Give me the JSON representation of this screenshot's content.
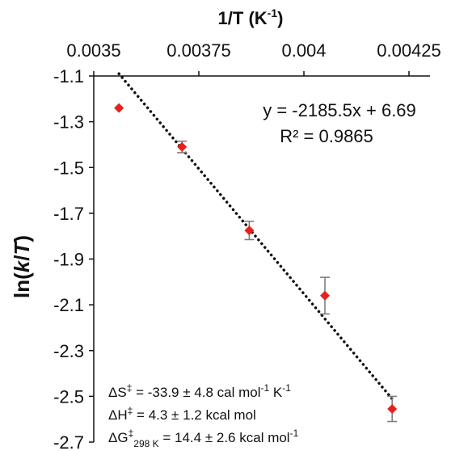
{
  "chart_data": {
    "type": "scatter",
    "xlabel": "1/T (K",
    "xlabel_sup": "-1",
    "xlabel_close": ")",
    "ylabel": "ln(k/T)",
    "ylabel_parts": {
      "pre": "ln(",
      "italic": "k",
      "mid": "/",
      "italic2": "T",
      "post": ")"
    },
    "xlim": [
      0.0035,
      0.0043
    ],
    "ylim": [
      -2.7,
      -1.1
    ],
    "x_ticks": [
      0.0035,
      0.00375,
      0.004,
      0.00425
    ],
    "x_tick_labels": [
      "0.0035",
      "0.00375",
      "0.004",
      "0.00425"
    ],
    "y_ticks": [
      -1.1,
      -1.3,
      -1.5,
      -1.7,
      -1.9,
      -2.1,
      -2.3,
      -2.5,
      -2.7
    ],
    "y_tick_labels": [
      "-1.1",
      "-1.3",
      "-1.5",
      "-1.7",
      "-1.9",
      "-2.1",
      "-2.3",
      "-2.5",
      "-2.7"
    ],
    "x_axis_position": "top",
    "grid": false,
    "series": [
      {
        "x": [
          0.00356,
          0.00371,
          0.00387,
          0.00405,
          0.00421
        ],
        "y": [
          -1.24,
          -1.41,
          -1.775,
          -2.06,
          -2.555
        ],
        "error": [
          0,
          0.025,
          0.04,
          0.08,
          0.055
        ],
        "marker": "diamond",
        "color": "#e8201c"
      }
    ],
    "trendline": {
      "slope": -2185.5,
      "intercept": 6.69,
      "x_range": [
        0.00356,
        0.00421
      ],
      "style": "dotted",
      "color": "#111111"
    },
    "equation_label": "y = -2185.5x + 6.69",
    "r2_label": "R² = 0.9865",
    "annotations": [
      {
        "lead": "ΔS",
        "sup": "‡",
        "rest": " = -33.9 ± 4.8 cal mol",
        "sup2": "-1",
        "tail": " K",
        "sup3": "-1"
      },
      {
        "lead": "ΔH",
        "sup": "‡",
        "rest": " = 4.3 ± 1.2 kcal mol",
        "sup2": "",
        "tail": "",
        "sup3": ""
      },
      {
        "lead": "ΔG",
        "sup": "‡",
        "sub": "298 K",
        "rest": " = 14.4 ± 2.6 kcal mol",
        "sup2": "-1",
        "tail": "",
        "sup3": ""
      }
    ],
    "colors": {
      "marker": "#e8201c",
      "error_bar": "#7f7f7f",
      "axis": "#111111"
    }
  }
}
